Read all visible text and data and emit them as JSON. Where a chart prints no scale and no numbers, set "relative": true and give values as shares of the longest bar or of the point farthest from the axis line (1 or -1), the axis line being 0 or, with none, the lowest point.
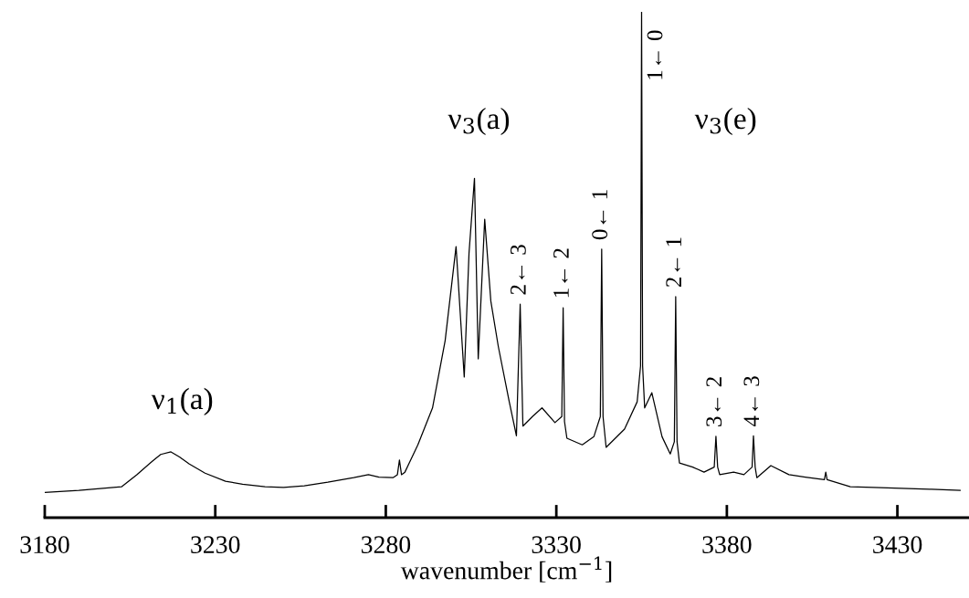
{
  "chart_data": {
    "type": "line",
    "relative": true,
    "xlabel": "wavenumber [cm$^{−1}$]",
    "xlim": [
      3180,
      3451
    ],
    "xticks": [
      3180,
      3230,
      3280,
      3330,
      3380,
      3430
    ],
    "grid": false,
    "legend": false,
    "marker": "none",
    "line_style": "solid",
    "series": [
      {
        "color": "#000000",
        "x": [
          3180,
          3190,
          3202.5,
          3207,
          3211.6,
          3214,
          3217,
          3219.5,
          3222.4,
          3227,
          3233,
          3238,
          3244.6,
          3250,
          3256.1,
          3263,
          3270.6,
          3274.9,
          3278,
          3282.1,
          3283.4,
          3284,
          3284.6,
          3285.6,
          3289.4,
          3293.7,
          3297.4,
          3300.6,
          3303,
          3304.4,
          3306,
          3307.1,
          3309,
          3310.8,
          3313,
          3316.2,
          3318.3,
          3319.4,
          3320.2,
          3323,
          3325.8,
          3329.6,
          3331.6,
          3332,
          3332.4,
          3333.1,
          3337.6,
          3341,
          3342.9,
          3343.3,
          3343.7,
          3344.6,
          3350,
          3353.7,
          3354.7,
          3355,
          3355.3,
          3355.9,
          3358,
          3361,
          3363.4,
          3364.6,
          3365,
          3365.4,
          3366.1,
          3370,
          3373.3,
          3376.3,
          3376.8,
          3377.3,
          3377.9,
          3382,
          3385,
          3387.4,
          3387.8,
          3388.3,
          3388.8,
          3392.9,
          3398.2,
          3403,
          3408.6,
          3409,
          3409.4,
          3416.2,
          3423,
          3431.2,
          3440,
          3448.4
        ],
        "values": [
          0.05,
          0.054,
          0.061,
          0.085,
          0.112,
          0.125,
          0.13,
          0.12,
          0.106,
          0.088,
          0.072,
          0.066,
          0.061,
          0.06,
          0.063,
          0.07,
          0.079,
          0.085,
          0.08,
          0.079,
          0.085,
          0.114,
          0.085,
          0.09,
          0.144,
          0.217,
          0.35,
          0.536,
          0.278,
          0.523,
          0.671,
          0.314,
          0.59,
          0.428,
          0.338,
          0.229,
          0.162,
          0.422,
          0.181,
          0.2,
          0.217,
          0.188,
          0.2,
          0.415,
          0.19,
          0.157,
          0.144,
          0.16,
          0.2,
          0.531,
          0.2,
          0.139,
          0.175,
          0.229,
          0.3,
          1.0,
          0.3,
          0.217,
          0.247,
          0.16,
          0.126,
          0.15,
          0.437,
          0.15,
          0.108,
          0.1,
          0.09,
          0.1,
          0.161,
          0.1,
          0.085,
          0.09,
          0.085,
          0.1,
          0.162,
          0.1,
          0.079,
          0.103,
          0.085,
          0.08,
          0.075,
          0.09,
          0.075,
          0.061,
          0.06,
          0.058,
          0.056,
          0.054
        ]
      }
    ],
    "annotations": [
      "ν$_{1}$(a)",
      "ν$_{3}$(a)",
      "ν$_{3}$(e)",
      {
        "text": "2← 3",
        "x": 3319.4,
        "y": 0.422
      },
      {
        "text": "1← 2",
        "x": 3332,
        "y": 0.415
      },
      {
        "text": "0← 1",
        "x": 3343.3,
        "y": 0.531
      },
      {
        "text": "1← 0",
        "x": 3355,
        "y": 1.0
      },
      {
        "text": "2← 1",
        "x": 3365,
        "y": 0.437
      },
      {
        "text": "3← 2",
        "x": 3376.8,
        "y": 0.161
      },
      {
        "text": "4← 3",
        "x": 3387.8,
        "y": 0.162
      }
    ]
  }
}
